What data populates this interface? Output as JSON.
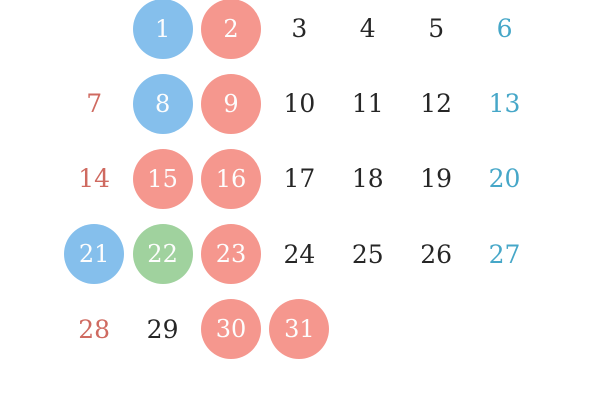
{
  "colors": {
    "background": "#ffffff",
    "circle_blue": "#85bfec",
    "circle_red": "#f5978e",
    "circle_green": "#a0d29e",
    "circle_text": "#fdfdfd",
    "text_default": "#262626",
    "text_red": "#cf6a60",
    "text_teal": "#46a7c8"
  },
  "calendar": {
    "weeks": [
      [
        {
          "label": "",
          "variant": "empty"
        },
        {
          "label": "1",
          "variant": "blue-circle"
        },
        {
          "label": "2",
          "variant": "red-circle"
        },
        {
          "label": "3",
          "variant": "plain"
        },
        {
          "label": "4",
          "variant": "plain"
        },
        {
          "label": "5",
          "variant": "plain"
        },
        {
          "label": "6",
          "variant": "teal-text"
        }
      ],
      [
        {
          "label": "7",
          "variant": "red-text"
        },
        {
          "label": "8",
          "variant": "blue-circle"
        },
        {
          "label": "9",
          "variant": "red-circle"
        },
        {
          "label": "10",
          "variant": "plain"
        },
        {
          "label": "11",
          "variant": "plain"
        },
        {
          "label": "12",
          "variant": "plain"
        },
        {
          "label": "13",
          "variant": "teal-text"
        }
      ],
      [
        {
          "label": "14",
          "variant": "red-text"
        },
        {
          "label": "15",
          "variant": "red-circle"
        },
        {
          "label": "16",
          "variant": "red-circle"
        },
        {
          "label": "17",
          "variant": "plain"
        },
        {
          "label": "18",
          "variant": "plain"
        },
        {
          "label": "19",
          "variant": "plain"
        },
        {
          "label": "20",
          "variant": "teal-text"
        }
      ],
      [
        {
          "label": "21",
          "variant": "blue-circle"
        },
        {
          "label": "22",
          "variant": "green-circle"
        },
        {
          "label": "23",
          "variant": "red-circle"
        },
        {
          "label": "24",
          "variant": "plain"
        },
        {
          "label": "25",
          "variant": "plain"
        },
        {
          "label": "26",
          "variant": "plain"
        },
        {
          "label": "27",
          "variant": "teal-text"
        }
      ],
      [
        {
          "label": "28",
          "variant": "red-text"
        },
        {
          "label": "29",
          "variant": "plain"
        },
        {
          "label": "30",
          "variant": "red-circle"
        },
        {
          "label": "31",
          "variant": "red-circle"
        },
        {
          "label": "",
          "variant": "empty"
        },
        {
          "label": "",
          "variant": "empty"
        },
        {
          "label": "",
          "variant": "empty"
        }
      ]
    ]
  }
}
